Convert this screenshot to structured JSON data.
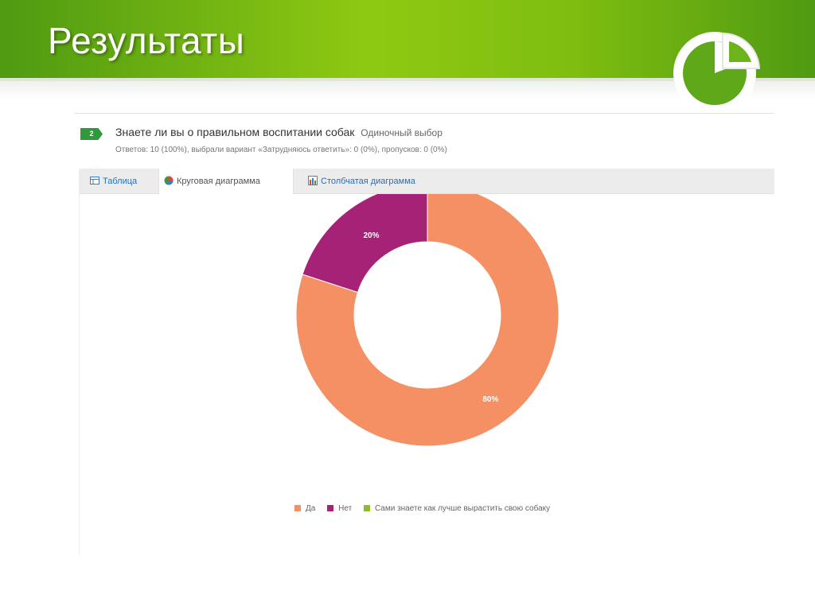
{
  "slide": {
    "title": "Результаты"
  },
  "question": {
    "number": "2",
    "title": "Знаете ли вы о правильном воспитании собак",
    "type": "Одиночный выбор",
    "stats": "Ответов: 10 (100%), выбрали вариант «Затрудняюсь ответить»: 0 (0%), пропусков: 0 (0%)"
  },
  "tabs": [
    {
      "label": "Таблица",
      "icon": "table-icon",
      "active": false
    },
    {
      "label": "Круговая диаграмма",
      "icon": "pie-chart-icon",
      "active": true
    },
    {
      "label": "Столбчатая диаграмма",
      "icon": "bar-chart-icon",
      "active": false
    }
  ],
  "colors": {
    "header_green": "#7fbe10",
    "slice_da": "#f58f64",
    "slice_net": "#a52277",
    "slice_sami": "#8bbf2a"
  },
  "chart_data": {
    "type": "pie",
    "donut": true,
    "categories": [
      "Да",
      "Нет",
      "Сами знаете как лучше вырастить свою собаку"
    ],
    "values": [
      80,
      20,
      0
    ],
    "data_labels": [
      "80%",
      "20%",
      ""
    ],
    "colors": [
      "#f58f64",
      "#a52277",
      "#8bbf2a"
    ],
    "legend_position": "bottom"
  }
}
